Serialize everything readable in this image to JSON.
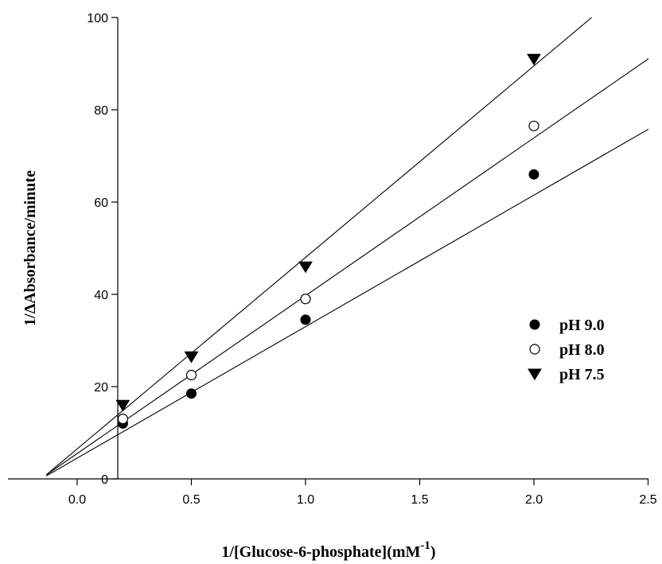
{
  "chart_data": {
    "type": "scatter",
    "xlabel": "1/[Glucose-6-phosphate](mM",
    "xlabel_superscript": "-1",
    "xlabel_suffix": ")",
    "ylabel": "1/ΔAbsorbance/minute",
    "xlim": [
      -0.3,
      2.5
    ],
    "ylim": [
      0,
      100
    ],
    "x_ticks": [
      0.0,
      0.5,
      1.0,
      1.5,
      2.0,
      2.5
    ],
    "x_tick_labels": [
      "0.0",
      "0.5",
      "1.0",
      "1.5",
      "2.0",
      "2.5"
    ],
    "y_ticks": [
      0,
      20,
      40,
      60,
      80,
      100
    ],
    "y_tick_labels": [
      "0",
      "20",
      "40",
      "60",
      "80",
      "100"
    ],
    "grid": false,
    "legend_position": "right-middle",
    "series": [
      {
        "name": "pH 9.0",
        "marker": "filled-circle",
        "color": "#000000",
        "x": [
          0.2,
          0.5,
          1.0,
          2.0
        ],
        "y": [
          12,
          18.5,
          34.5,
          66
        ],
        "fit": {
          "slope": 28.5,
          "intercept": 4.5
        }
      },
      {
        "name": "pH 8.0",
        "marker": "open-circle",
        "color": "#000000",
        "x": [
          0.2,
          0.5,
          1.0,
          2.0
        ],
        "y": [
          13,
          22.5,
          39,
          76.5
        ],
        "fit": {
          "slope": 34.2,
          "intercept": 5.5
        }
      },
      {
        "name": "pH 7.5",
        "marker": "filled-triangle-down",
        "color": "#000000",
        "x": [
          0.2,
          0.5,
          1.0,
          2.0
        ],
        "y": [
          16,
          26.5,
          46,
          91
        ],
        "fit": {
          "slope": 41.5,
          "intercept": 6.5
        }
      }
    ]
  }
}
